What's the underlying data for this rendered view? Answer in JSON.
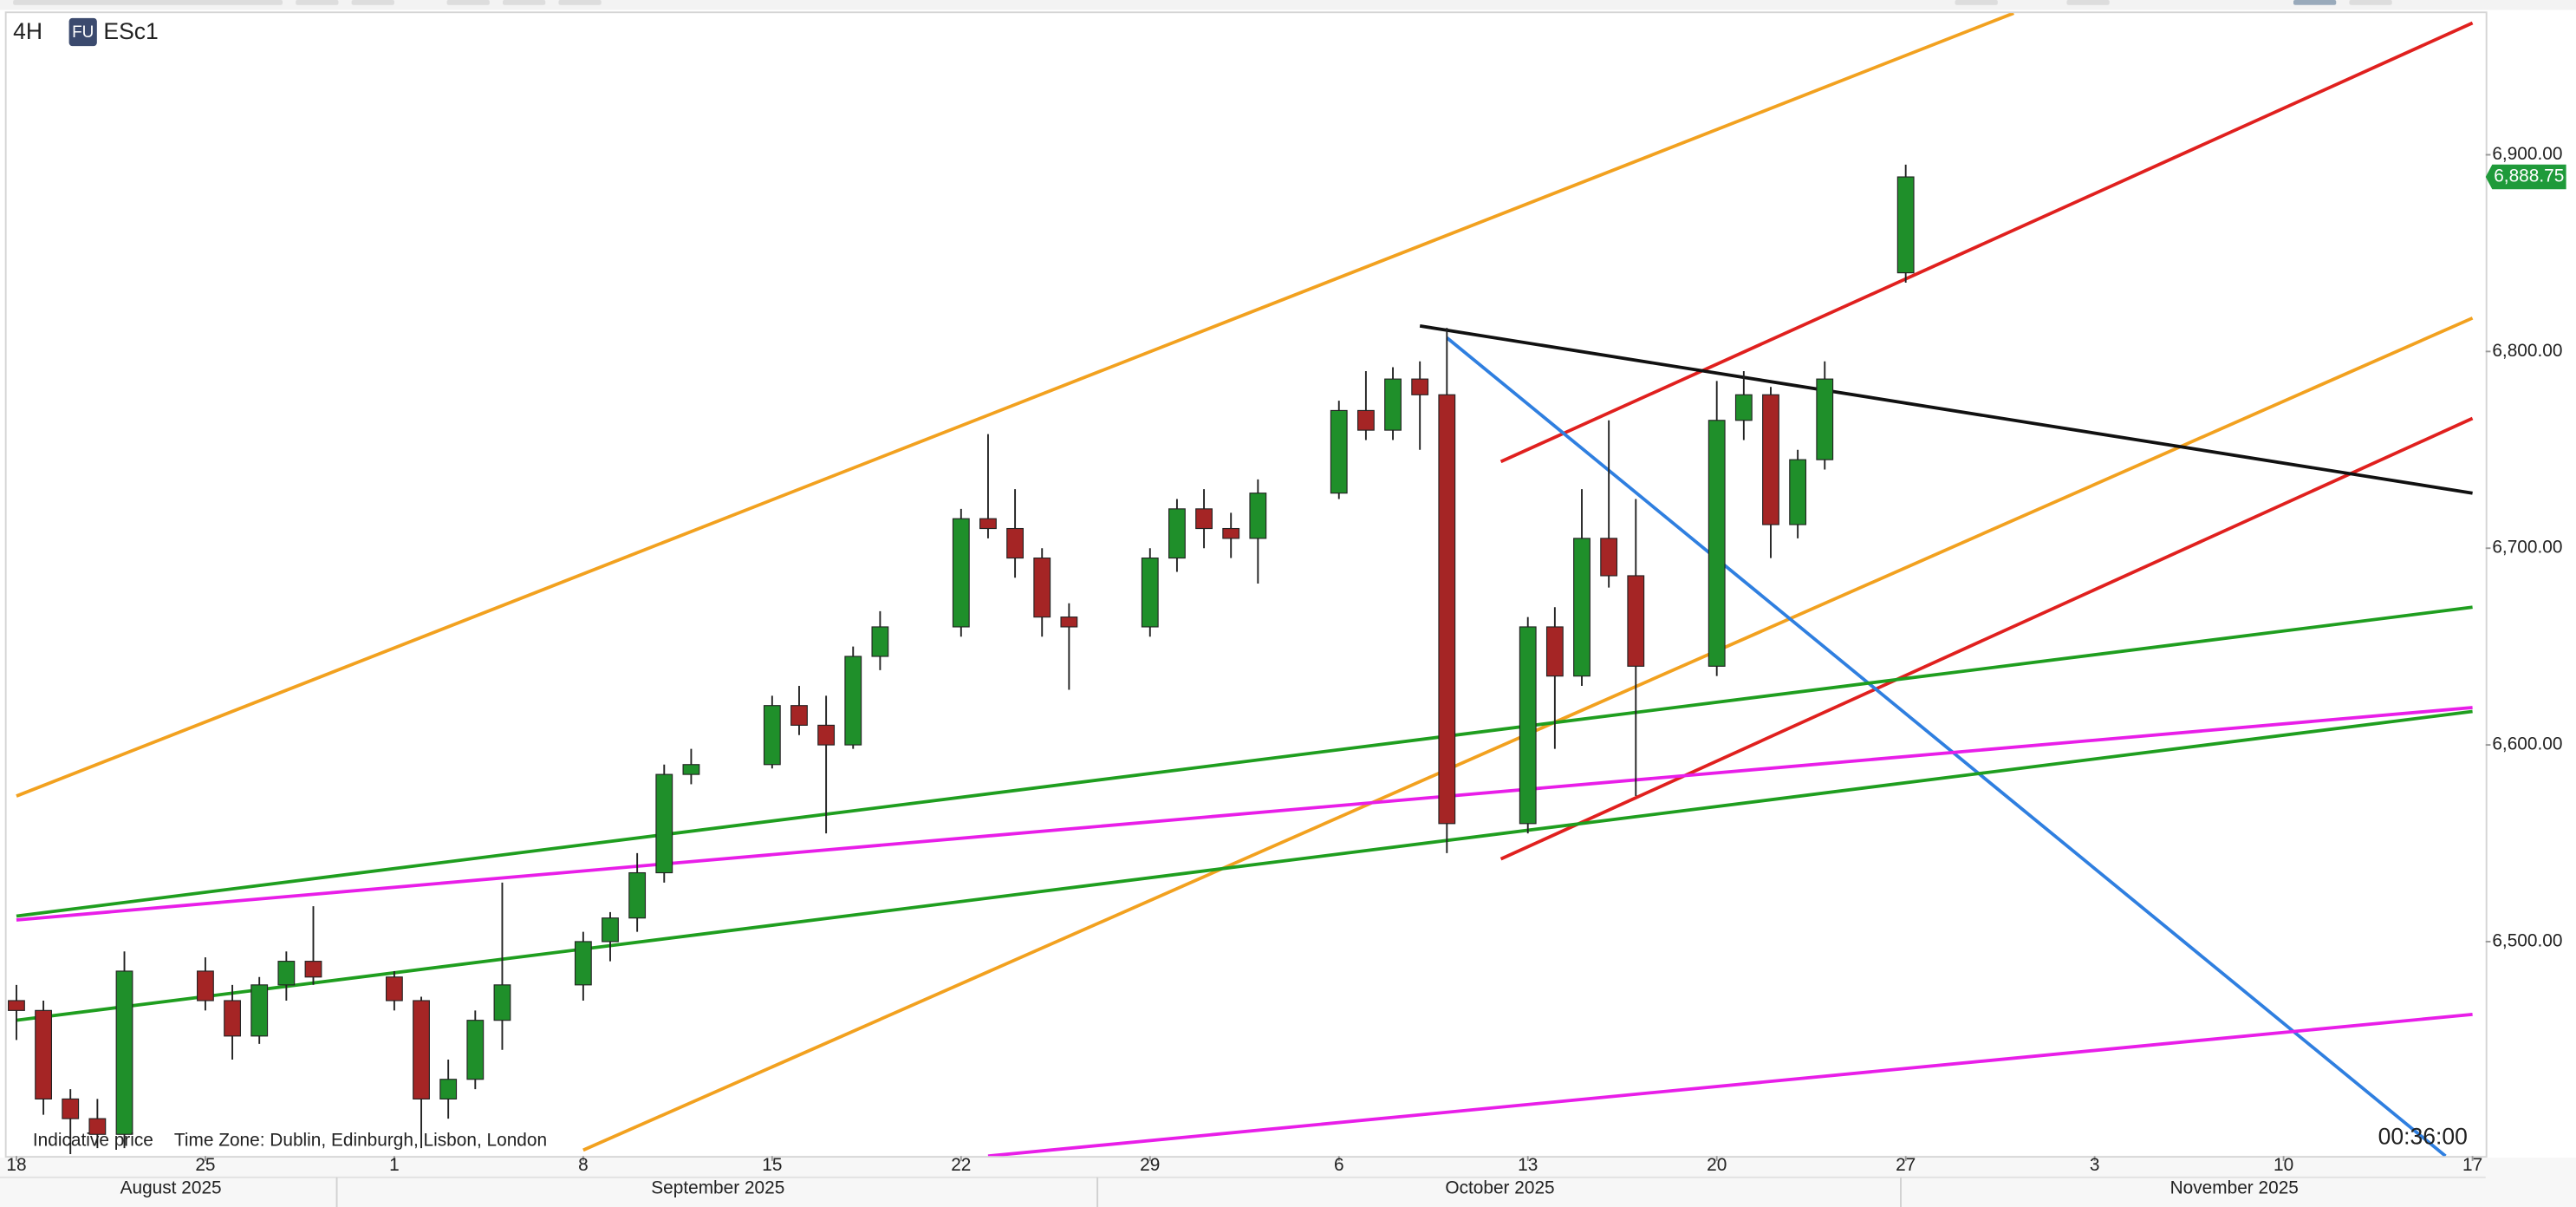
{
  "header": {
    "interval": "4H",
    "badge": "FU",
    "symbol": "ESc1"
  },
  "footer": {
    "price_note": "Indicative price",
    "time_zone": "Time Zone: Dublin, Edinburgh, Lisbon, London",
    "countdown": "00:36:00"
  },
  "chart_data": {
    "type": "candlestick",
    "x": [
      "2025-08-18",
      "2025-08-19",
      "2025-08-20",
      "2025-08-21",
      "2025-08-22",
      "2025-08-25",
      "2025-08-26",
      "2025-08-27",
      "2025-08-28",
      "2025-08-29",
      "2025-09-01",
      "2025-09-02",
      "2025-09-03",
      "2025-09-04",
      "2025-09-05",
      "2025-09-08",
      "2025-09-09",
      "2025-09-10",
      "2025-09-11",
      "2025-09-12",
      "2025-09-15",
      "2025-09-16",
      "2025-09-17",
      "2025-09-18",
      "2025-09-19",
      "2025-09-22",
      "2025-09-23",
      "2025-09-24",
      "2025-09-25",
      "2025-09-26",
      "2025-09-29",
      "2025-09-30",
      "2025-10-01",
      "2025-10-02",
      "2025-10-03",
      "2025-10-06",
      "2025-10-07",
      "2025-10-08",
      "2025-10-09",
      "2025-10-10",
      "2025-10-13",
      "2025-10-14",
      "2025-10-15",
      "2025-10-16",
      "2025-10-17",
      "2025-10-20",
      "2025-10-21",
      "2025-10-22",
      "2025-10-23",
      "2025-10-24",
      "2025-10-27"
    ],
    "open": [
      6470,
      6465,
      6420,
      6410,
      6402,
      6485,
      6470,
      6452,
      6478,
      6490,
      6482,
      6470,
      6420,
      6430,
      6460,
      6478,
      6500,
      6512,
      6535,
      6585,
      6590,
      6620,
      6610,
      6600,
      6645,
      6660,
      6715,
      6710,
      6695,
      6665,
      6660,
      6695,
      6720,
      6710,
      6705,
      6728,
      6770,
      6760,
      6786,
      6778,
      6560,
      6660,
      6635,
      6705,
      6686,
      6640,
      6765,
      6778,
      6712,
      6745,
      6840
    ],
    "high": [
      6478,
      6470,
      6425,
      6420,
      6495,
      6492,
      6478,
      6482,
      6495,
      6518,
      6485,
      6472,
      6440,
      6465,
      6530,
      6505,
      6515,
      6545,
      6590,
      6598,
      6625,
      6630,
      6625,
      6650,
      6668,
      6720,
      6758,
      6730,
      6700,
      6672,
      6700,
      6725,
      6730,
      6718,
      6735,
      6775,
      6790,
      6792,
      6795,
      6812,
      6665,
      6670,
      6730,
      6765,
      6725,
      6785,
      6790,
      6782,
      6750,
      6795,
      6895
    ],
    "low": [
      6450,
      6412,
      6392,
      6395,
      6395,
      6465,
      6440,
      6448,
      6470,
      6478,
      6465,
      6395,
      6410,
      6425,
      6445,
      6470,
      6490,
      6505,
      6530,
      6580,
      6588,
      6605,
      6555,
      6598,
      6638,
      6655,
      6705,
      6685,
      6655,
      6628,
      6655,
      6688,
      6700,
      6695,
      6682,
      6725,
      6755,
      6755,
      6750,
      6545,
      6555,
      6598,
      6630,
      6680,
      6574,
      6635,
      6755,
      6695,
      6705,
      6740,
      6835
    ],
    "close": [
      6465,
      6420,
      6410,
      6402,
      6485,
      6470,
      6452,
      6478,
      6490,
      6482,
      6470,
      6420,
      6430,
      6460,
      6478,
      6500,
      6512,
      6535,
      6585,
      6590,
      6620,
      6610,
      6600,
      6645,
      6660,
      6715,
      6710,
      6695,
      6665,
      6660,
      6695,
      6720,
      6710,
      6705,
      6728,
      6770,
      6760,
      6786,
      6778,
      6560,
      6660,
      6635,
      6705,
      6686,
      6640,
      6765,
      6778,
      6712,
      6745,
      6786,
      6888.75
    ],
    "up_color": "#1f8f2a",
    "down_color": "#a52525",
    "xlim": [
      "2025-08-18",
      "2025-11-17"
    ],
    "xticks": [
      {
        "value": "2025-08-18",
        "label": "18"
      },
      {
        "value": "2025-08-25",
        "label": "25"
      },
      {
        "value": "2025-09-01",
        "label": "1"
      },
      {
        "value": "2025-09-08",
        "label": "8"
      },
      {
        "value": "2025-09-15",
        "label": "15"
      },
      {
        "value": "2025-09-22",
        "label": "22"
      },
      {
        "value": "2025-09-29",
        "label": "29"
      },
      {
        "value": "2025-10-06",
        "label": "6"
      },
      {
        "value": "2025-10-13",
        "label": "13"
      },
      {
        "value": "2025-10-20",
        "label": "20"
      },
      {
        "value": "2025-10-27",
        "label": "27"
      },
      {
        "value": "2025-11-03",
        "label": "3"
      },
      {
        "value": "2025-11-10",
        "label": "10"
      },
      {
        "value": "2025-11-17",
        "label": "17"
      }
    ],
    "months": [
      "August 2025",
      "September 2025",
      "October 2025",
      "November 2025"
    ],
    "ylim": [
      6391,
      6972
    ],
    "yticks": [
      {
        "value": 6500,
        "label": "6,500.00"
      },
      {
        "value": 6600,
        "label": "6,600.00"
      },
      {
        "value": 6700,
        "label": "6,700.00"
      },
      {
        "value": 6800,
        "label": "6,800.00"
      },
      {
        "value": 6900,
        "label": "6,900.00"
      }
    ],
    "grid": false,
    "last_price": {
      "value": 6888.75,
      "label": "6,888.75",
      "color": "#1f9a3a"
    },
    "trend_lines": [
      {
        "color": "#f2a11f",
        "x": [
          "2025-08-18",
          "2025-10-31"
        ],
        "values": [
          6574,
          6972
        ]
      },
      {
        "color": "#f2a11f",
        "x": [
          "2025-09-08",
          "2025-11-17"
        ],
        "values": [
          6394,
          6817
        ]
      },
      {
        "color": "#e0201e",
        "x": [
          "2025-10-12",
          "2025-11-17"
        ],
        "values": [
          6744,
          6967
        ]
      },
      {
        "color": "#e0201e",
        "x": [
          "2025-10-12",
          "2025-11-17"
        ],
        "values": [
          6542,
          6766
        ]
      },
      {
        "color": "#111111",
        "x": [
          "2025-10-09",
          "2025-11-17"
        ],
        "values": [
          6813,
          6728
        ]
      },
      {
        "color": "#2f7fe0",
        "x": [
          "2025-10-10",
          "2025-11-16"
        ],
        "values": [
          6807,
          6391
        ]
      },
      {
        "color": "#1f9e1f",
        "x": [
          "2025-08-18",
          "2025-11-17"
        ],
        "values": [
          6513,
          6670
        ]
      },
      {
        "color": "#1f9e1f",
        "x": [
          "2025-08-18",
          "2025-11-17"
        ],
        "values": [
          6460,
          6617
        ]
      },
      {
        "color": "#e81ee8",
        "x": [
          "2025-08-18",
          "2025-11-17"
        ],
        "values": [
          6511,
          6619
        ]
      },
      {
        "color": "#e81ee8",
        "x": [
          "2025-09-23",
          "2025-11-17"
        ],
        "values": [
          6391,
          6463
        ]
      }
    ]
  }
}
